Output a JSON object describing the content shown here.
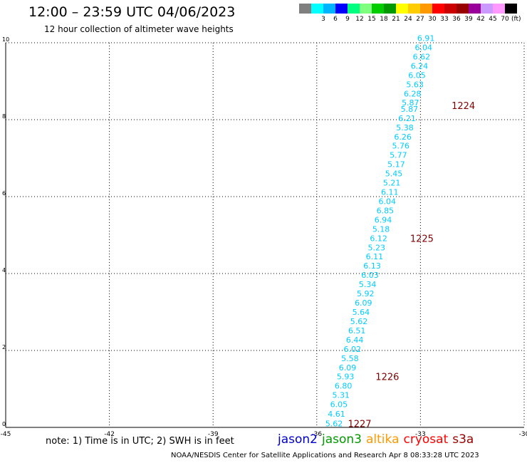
{
  "header": {
    "title": "12:00 – 23:59 UTC 04/06/2023",
    "subtitle": "12 hour collection of altimeter wave heights"
  },
  "legend": {
    "unit": "(ft)",
    "colors": [
      {
        "label": "",
        "color": "#7f7f7f"
      },
      {
        "label": "3",
        "color": "#00ffff"
      },
      {
        "label": "6",
        "color": "#00b4ff"
      },
      {
        "label": "9",
        "color": "#0000ff"
      },
      {
        "label": "12",
        "color": "#00ff7f"
      },
      {
        "label": "15",
        "color": "#7fff7f"
      },
      {
        "label": "18",
        "color": "#00cc00"
      },
      {
        "label": "21",
        "color": "#009900"
      },
      {
        "label": "24",
        "color": "#ffff00"
      },
      {
        "label": "27",
        "color": "#ffcc00"
      },
      {
        "label": "30",
        "color": "#ff9900"
      },
      {
        "label": "33",
        "color": "#ff0000"
      },
      {
        "label": "36",
        "color": "#cc0000"
      },
      {
        "label": "39",
        "color": "#990000"
      },
      {
        "label": "42",
        "color": "#990099"
      },
      {
        "label": "45",
        "color": "#cc99ff"
      },
      {
        "label": "70",
        "color": "#ff99ff"
      },
      {
        "label": "",
        "color": "#000000"
      }
    ]
  },
  "chart_data": {
    "type": "scatter",
    "title": "12:00 – 23:59 UTC 04/06/2023",
    "subtitle": "12 hour collection of altimeter wave heights",
    "xlim": [
      -45,
      -30
    ],
    "ylim": [
      0,
      10
    ],
    "xticks": [
      "-45",
      "-42",
      "-39",
      "-36",
      "-33",
      "-30"
    ],
    "yticks": [
      "0",
      "2",
      "4",
      "6",
      "8",
      "10"
    ],
    "grid": true,
    "value_color": "#00ccff",
    "time_color": "#800000",
    "points": [
      {
        "lon": -35.5,
        "lat": 0.1,
        "swh": "5.62"
      },
      {
        "lon": -35.43,
        "lat": 0.35,
        "swh": "4.61"
      },
      {
        "lon": -35.36,
        "lat": 0.6,
        "swh": "6.05"
      },
      {
        "lon": -35.3,
        "lat": 0.84,
        "swh": "5.31"
      },
      {
        "lon": -35.23,
        "lat": 1.08,
        "swh": "6.80"
      },
      {
        "lon": -35.17,
        "lat": 1.32,
        "swh": "5.93"
      },
      {
        "lon": -35.11,
        "lat": 1.56,
        "swh": "6.09"
      },
      {
        "lon": -35.04,
        "lat": 1.8,
        "swh": "5.58"
      },
      {
        "lon": -34.97,
        "lat": 2.04,
        "swh": "6.02"
      },
      {
        "lon": -34.9,
        "lat": 2.28,
        "swh": "6.44"
      },
      {
        "lon": -34.84,
        "lat": 2.52,
        "swh": "6.51"
      },
      {
        "lon": -34.78,
        "lat": 2.76,
        "swh": "5.62"
      },
      {
        "lon": -34.72,
        "lat": 3.0,
        "swh": "5.64"
      },
      {
        "lon": -34.65,
        "lat": 3.24,
        "swh": "6.09"
      },
      {
        "lon": -34.59,
        "lat": 3.48,
        "swh": "5.92"
      },
      {
        "lon": -34.53,
        "lat": 3.72,
        "swh": "5.34"
      },
      {
        "lon": -34.46,
        "lat": 3.96,
        "swh": "6.03"
      },
      {
        "lon": -34.4,
        "lat": 4.2,
        "swh": "6.13"
      },
      {
        "lon": -34.33,
        "lat": 4.44,
        "swh": "6.11"
      },
      {
        "lon": -34.27,
        "lat": 4.68,
        "swh": "5.23"
      },
      {
        "lon": -34.21,
        "lat": 4.92,
        "swh": "6.12"
      },
      {
        "lon": -34.14,
        "lat": 5.16,
        "swh": "5.18"
      },
      {
        "lon": -34.08,
        "lat": 5.4,
        "swh": "6.94"
      },
      {
        "lon": -34.02,
        "lat": 5.64,
        "swh": "6.85"
      },
      {
        "lon": -33.96,
        "lat": 5.88,
        "swh": "6.04"
      },
      {
        "lon": -33.89,
        "lat": 6.12,
        "swh": "6.11"
      },
      {
        "lon": -33.83,
        "lat": 6.36,
        "swh": "5.21"
      },
      {
        "lon": -33.77,
        "lat": 6.6,
        "swh": "5.45"
      },
      {
        "lon": -33.7,
        "lat": 6.84,
        "swh": "5.17"
      },
      {
        "lon": -33.64,
        "lat": 7.08,
        "swh": "5.77"
      },
      {
        "lon": -33.57,
        "lat": 7.32,
        "swh": "5.76"
      },
      {
        "lon": -33.51,
        "lat": 7.56,
        "swh": "6.26"
      },
      {
        "lon": -33.45,
        "lat": 7.8,
        "swh": "5.38"
      },
      {
        "lon": -33.39,
        "lat": 8.04,
        "swh": "6.21"
      },
      {
        "lon": -33.32,
        "lat": 8.28,
        "swh": "5.87"
      },
      {
        "lon": -33.29,
        "lat": 8.44,
        "swh": "5.87"
      },
      {
        "lon": -33.23,
        "lat": 8.68,
        "swh": "6.28"
      },
      {
        "lon": -33.16,
        "lat": 8.92,
        "swh": "5.63"
      },
      {
        "lon": -33.1,
        "lat": 9.16,
        "swh": "6.05"
      },
      {
        "lon": -33.03,
        "lat": 9.4,
        "swh": "6.24"
      },
      {
        "lon": -32.97,
        "lat": 9.64,
        "swh": "6.62"
      },
      {
        "lon": -32.91,
        "lat": 9.88,
        "swh": "6.04"
      },
      {
        "lon": -32.84,
        "lat": 10.12,
        "swh": "6.91"
      }
    ],
    "time_labels": [
      {
        "lon": -32.1,
        "lat": 8.37,
        "label": "1224"
      },
      {
        "lon": -33.3,
        "lat": 4.92,
        "label": "1225"
      },
      {
        "lon": -34.3,
        "lat": 1.32,
        "label": "1226"
      },
      {
        "lon": -35.1,
        "lat": 0.1,
        "label": "1227"
      }
    ]
  },
  "note": "note: 1) Time is in UTC; 2) SWH is in feet",
  "missions": [
    {
      "name": "jason2",
      "color": "#0000cc"
    },
    {
      "name": "jason3",
      "color": "#009900"
    },
    {
      "name": "altika",
      "color": "#ff9900"
    },
    {
      "name": "cryosat",
      "color": "#ff0000"
    },
    {
      "name": "s3a",
      "color": "#990000"
    }
  ],
  "footer": "NOAA/NESDIS Center for Satellite Applications and Research   Apr  8 08:33:28 UTC 2023"
}
